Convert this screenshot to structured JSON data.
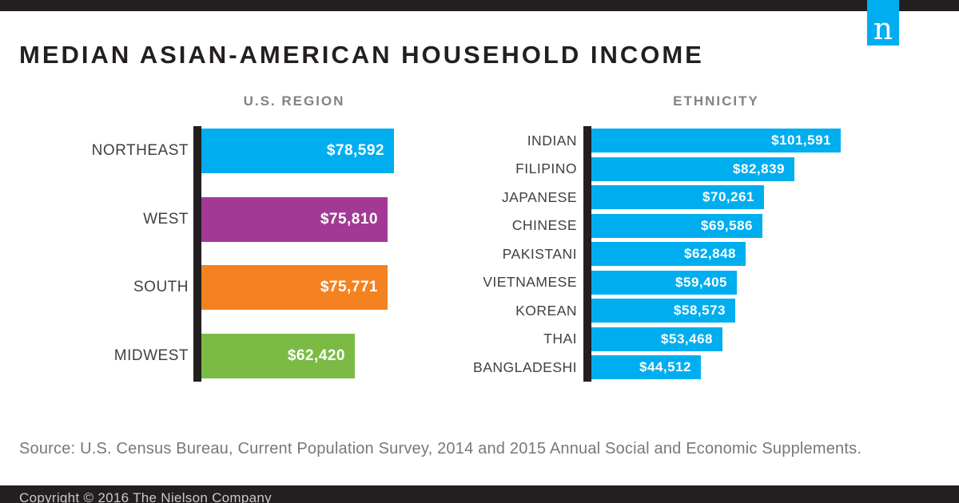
{
  "brand": {
    "logo_letter": "n",
    "logo_color": "#00aeef"
  },
  "header": {
    "title": "MEDIAN ASIAN-AMERICAN HOUSEHOLD INCOME"
  },
  "source": "Source: U.S. Census Bureau, Current Population Survey, 2014 and 2015 Annual Social and Economic Supplements.",
  "footer": {
    "copyright": "Copyright © 2016 The Nielson Company"
  },
  "colors": {
    "bar_blue": "#00aeef",
    "bar_purple": "#a23a95",
    "bar_orange": "#f58220",
    "bar_green": "#7bbb45",
    "axis_black": "#231f20",
    "label_gray": "#414042",
    "header_gray": "#808285",
    "source_gray": "#77787b"
  },
  "chart_data": [
    {
      "type": "bar",
      "orientation": "horizontal",
      "title": "U.S. REGION",
      "categories": [
        "NORTHEAST",
        "WEST",
        "SOUTH",
        "MIDWEST"
      ],
      "values": [
        78592,
        75810,
        75771,
        62420
      ],
      "value_labels": [
        "$78,592",
        "$75,810",
        "$75,771",
        "$62,420"
      ],
      "bar_colors": [
        "#00aeef",
        "#a23a95",
        "#f58220",
        "#7bbb45"
      ],
      "xlabel": "",
      "ylabel": "",
      "xlim": [
        0,
        105000
      ],
      "grid": false,
      "legend": false,
      "value_label_position": "inside-right"
    },
    {
      "type": "bar",
      "orientation": "horizontal",
      "title": "ETHNICITY",
      "categories": [
        "INDIAN",
        "FILIPINO",
        "JAPANESE",
        "CHINESE",
        "PAKISTANI",
        "VIETNAMESE",
        "KOREAN",
        "THAI",
        "BANGLADESHI"
      ],
      "values": [
        101591,
        82839,
        70261,
        69586,
        62848,
        59405,
        58573,
        53468,
        44512
      ],
      "value_labels": [
        "$101,591",
        "$82,839",
        "$70,261",
        "$69,586",
        "$62,848",
        "$59,405",
        "$58,573",
        "$53,468",
        "$44,512"
      ],
      "bar_colors": [
        "#00aeef",
        "#00aeef",
        "#00aeef",
        "#00aeef",
        "#00aeef",
        "#00aeef",
        "#00aeef",
        "#00aeef",
        "#00aeef"
      ],
      "xlabel": "",
      "ylabel": "",
      "xlim": [
        0,
        105000
      ],
      "grid": false,
      "legend": false,
      "value_label_position": "inside-right"
    }
  ]
}
